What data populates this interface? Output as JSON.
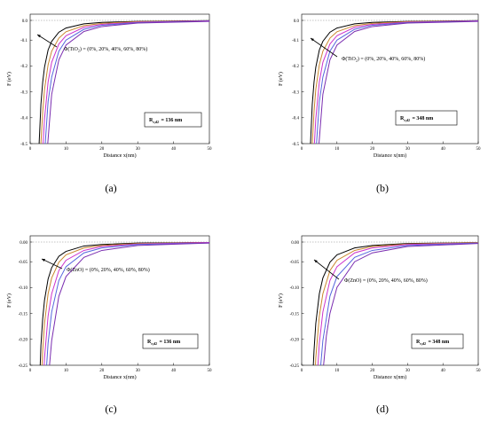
{
  "chart_data": [
    {
      "type": "line",
      "panel_label_letter": "a",
      "xlabel": "Distance x(nm)",
      "ylabel": "F (eV)",
      "xlim": [
        0,
        50
      ],
      "ylim": [
        -0.5,
        0.0
      ],
      "xticks": [
        "0",
        "10",
        "20",
        "30",
        "40",
        "50"
      ],
      "yticks": [
        "0.0",
        "-0.1",
        "-0.2",
        "-0.3",
        "-0.4",
        "-0.5"
      ],
      "annotation_prefix": "Φ(TiO",
      "annotation_sub": "2",
      "annotation_suffix": ") = (0%, 20%, 40%, 60%, 80%)",
      "box_r": "R",
      "box_sub": "r,d2",
      "box_value": "= 136 nm",
      "series": [
        {
          "color": "#000000",
          "x": [
            2.5,
            3,
            3.5,
            4,
            5,
            6,
            8,
            10,
            15,
            20,
            30,
            50
          ],
          "y": [
            -0.5,
            -0.34,
            -0.25,
            -0.19,
            -0.12,
            -0.085,
            -0.048,
            -0.031,
            -0.014,
            -0.008,
            -0.004,
            -0.001
          ]
        },
        {
          "color": "#c9872e",
          "x": [
            3,
            3.5,
            4,
            5,
            6,
            8,
            10,
            15,
            20,
            30,
            50
          ],
          "y": [
            -0.5,
            -0.37,
            -0.28,
            -0.18,
            -0.125,
            -0.072,
            -0.046,
            -0.021,
            -0.012,
            -0.005,
            -0.002
          ]
        },
        {
          "color": "#cc33cc",
          "x": [
            3.6,
            4,
            5,
            6,
            8,
            10,
            15,
            20,
            30,
            50
          ],
          "y": [
            -0.5,
            -0.4,
            -0.25,
            -0.17,
            -0.096,
            -0.062,
            -0.028,
            -0.016,
            -0.007,
            -0.002
          ]
        },
        {
          "color": "#5566dd",
          "x": [
            4.2,
            5,
            6,
            8,
            10,
            15,
            20,
            30,
            50
          ],
          "y": [
            -0.5,
            -0.33,
            -0.23,
            -0.125,
            -0.08,
            -0.036,
            -0.02,
            -0.009,
            -0.003
          ]
        },
        {
          "color": "#7a2db0",
          "x": [
            4.9,
            6,
            8,
            10,
            15,
            20,
            30,
            50
          ],
          "y": [
            -0.5,
            -0.3,
            -0.16,
            -0.1,
            -0.045,
            -0.025,
            -0.011,
            -0.004
          ]
        }
      ]
    },
    {
      "type": "line",
      "panel_label_letter": "b",
      "xlabel": "Distance x(nm)",
      "ylabel": "F (eV)",
      "xlim": [
        0,
        50
      ],
      "ylim": [
        -0.5,
        0.0
      ],
      "xticks": [
        "0",
        "10",
        "20",
        "30",
        "40",
        "50"
      ],
      "yticks": [
        "0.0",
        "-0.1",
        "-0.2",
        "-0.3",
        "-0.4",
        "-0.5"
      ],
      "annotation_prefix": "Φ(TiO",
      "annotation_sub": "2",
      "annotation_suffix": ") = (0%, 20%, 40%, 60%, 80%)",
      "box_r": "R",
      "box_sub": "r,d2",
      "box_value": "= 348 nm",
      "series": [
        {
          "color": "#000000",
          "x": [
            2.5,
            3,
            3.5,
            4,
            5,
            6,
            8,
            10,
            15,
            20,
            30,
            50
          ],
          "y": [
            -0.5,
            -0.34,
            -0.25,
            -0.19,
            -0.12,
            -0.085,
            -0.048,
            -0.031,
            -0.014,
            -0.008,
            -0.004,
            -0.001
          ]
        },
        {
          "color": "#c9872e",
          "x": [
            3,
            3.5,
            4,
            5,
            6,
            8,
            10,
            15,
            20,
            30,
            50
          ],
          "y": [
            -0.5,
            -0.37,
            -0.28,
            -0.18,
            -0.125,
            -0.072,
            -0.046,
            -0.021,
            -0.012,
            -0.005,
            -0.002
          ]
        },
        {
          "color": "#cc33cc",
          "x": [
            3.6,
            4,
            5,
            6,
            8,
            10,
            15,
            20,
            30,
            50
          ],
          "y": [
            -0.5,
            -0.4,
            -0.25,
            -0.17,
            -0.096,
            -0.062,
            -0.028,
            -0.016,
            -0.007,
            -0.002
          ]
        },
        {
          "color": "#5566dd",
          "x": [
            4.2,
            5,
            6,
            8,
            10,
            15,
            20,
            30,
            50
          ],
          "y": [
            -0.5,
            -0.33,
            -0.23,
            -0.125,
            -0.08,
            -0.036,
            -0.02,
            -0.009,
            -0.003
          ]
        },
        {
          "color": "#7a2db0",
          "x": [
            4.9,
            6,
            8,
            10,
            15,
            20,
            30,
            50
          ],
          "y": [
            -0.5,
            -0.3,
            -0.16,
            -0.1,
            -0.045,
            -0.025,
            -0.011,
            -0.004
          ]
        }
      ]
    },
    {
      "type": "line",
      "panel_label_letter": "c",
      "xlabel": "Distance x(nm)",
      "ylabel": "F (eV)",
      "xlim": [
        0,
        50
      ],
      "ylim": [
        -0.25,
        0.0
      ],
      "xticks": [
        "0",
        "10",
        "20",
        "30",
        "40",
        "50"
      ],
      "yticks": [
        "0.00",
        "-0.05",
        "-0.10",
        "-0.15",
        "-0.20",
        "-0.25"
      ],
      "annotation_prefix": "Φ(ZnO) = (0%, 20%, 40%, 60%, 80%)",
      "annotation_sub": "",
      "annotation_suffix": "",
      "box_r": "R",
      "box_sub": "r,d2",
      "box_value": "= 136 nm",
      "series": [
        {
          "color": "#000000",
          "x": [
            2.8,
            3,
            3.5,
            4,
            5,
            6,
            8,
            10,
            15,
            20,
            30,
            50
          ],
          "y": [
            -0.25,
            -0.21,
            -0.155,
            -0.118,
            -0.075,
            -0.052,
            -0.029,
            -0.019,
            -0.008,
            -0.005,
            -0.002,
            -0.001
          ]
        },
        {
          "color": "#c9872e",
          "x": [
            3.3,
            3.5,
            4,
            5,
            6,
            8,
            10,
            15,
            20,
            30,
            50
          ],
          "y": [
            -0.25,
            -0.22,
            -0.165,
            -0.105,
            -0.073,
            -0.041,
            -0.026,
            -0.012,
            -0.007,
            -0.003,
            -0.001
          ]
        },
        {
          "color": "#cc33cc",
          "x": [
            3.9,
            4,
            5,
            6,
            8,
            10,
            15,
            20,
            30,
            50
          ],
          "y": [
            -0.25,
            -0.235,
            -0.15,
            -0.105,
            -0.058,
            -0.037,
            -0.017,
            -0.009,
            -0.004,
            -0.001
          ]
        },
        {
          "color": "#5566dd",
          "x": [
            4.6,
            5,
            6,
            8,
            10,
            15,
            20,
            30,
            50
          ],
          "y": [
            -0.25,
            -0.205,
            -0.142,
            -0.078,
            -0.05,
            -0.022,
            -0.012,
            -0.005,
            -0.002
          ]
        },
        {
          "color": "#7a2db0",
          "x": [
            5.4,
            6,
            8,
            10,
            15,
            20,
            30,
            50
          ],
          "y": [
            -0.25,
            -0.2,
            -0.11,
            -0.07,
            -0.031,
            -0.017,
            -0.007,
            -0.002
          ]
        }
      ]
    },
    {
      "type": "line",
      "panel_label_letter": "d",
      "xlabel": "Distance x(nm)",
      "ylabel": "F (eV)",
      "xlim": [
        0,
        50
      ],
      "ylim": [
        -0.25,
        0.0
      ],
      "xticks": [
        "0",
        "10",
        "20",
        "30",
        "40",
        "50"
      ],
      "yticks": [
        "0.00",
        "-0.05",
        "-0.10",
        "-0.15",
        "-0.20",
        "-0.25"
      ],
      "annotation_prefix": "Φ(ZnO) = (0%, 20%, 40%, 60%, 80%)",
      "annotation_sub": "",
      "annotation_suffix": "",
      "box_r": "R",
      "box_sub": "r,d2",
      "box_value": "= 348 nm",
      "series": [
        {
          "color": "#000000",
          "x": [
            3.3,
            3.5,
            4,
            5,
            6,
            8,
            10,
            15,
            20,
            30,
            50
          ],
          "y": [
            -0.25,
            -0.22,
            -0.165,
            -0.105,
            -0.073,
            -0.041,
            -0.026,
            -0.012,
            -0.007,
            -0.003,
            -0.001
          ]
        },
        {
          "color": "#c9872e",
          "x": [
            3.9,
            4,
            5,
            6,
            8,
            10,
            15,
            20,
            30,
            50
          ],
          "y": [
            -0.25,
            -0.235,
            -0.15,
            -0.105,
            -0.058,
            -0.037,
            -0.017,
            -0.009,
            -0.004,
            -0.001
          ]
        },
        {
          "color": "#cc33cc",
          "x": [
            4.6,
            5,
            6,
            8,
            10,
            15,
            20,
            30,
            50
          ],
          "y": [
            -0.25,
            -0.205,
            -0.142,
            -0.078,
            -0.05,
            -0.022,
            -0.012,
            -0.005,
            -0.002
          ]
        },
        {
          "color": "#5566dd",
          "x": [
            5.4,
            6,
            8,
            10,
            15,
            20,
            30,
            50
          ],
          "y": [
            -0.25,
            -0.2,
            -0.11,
            -0.07,
            -0.031,
            -0.017,
            -0.007,
            -0.002
          ]
        },
        {
          "color": "#7a2db0",
          "x": [
            6.2,
            7,
            8,
            10,
            15,
            20,
            30,
            50
          ],
          "y": [
            -0.25,
            -0.19,
            -0.145,
            -0.092,
            -0.04,
            -0.022,
            -0.009,
            -0.003
          ]
        }
      ]
    }
  ],
  "captions": [
    "(a)",
    "(b)",
    "(c)",
    "(d)"
  ]
}
